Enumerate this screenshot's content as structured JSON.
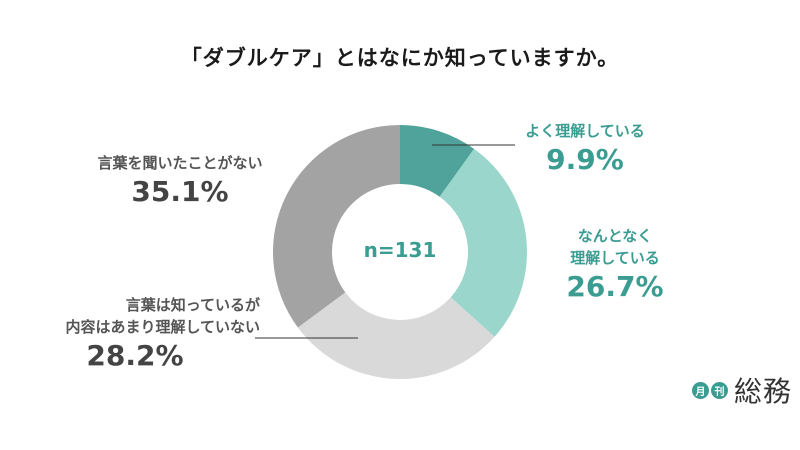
{
  "chart_data": {
    "type": "pie",
    "title": "「ダブルケア」とはなにか知っていますか。",
    "center_label": "n=131",
    "slices": [
      {
        "name_lines": [
          "よく理解している"
        ],
        "value": 9.9,
        "value_label": "9.9%",
        "color": "#4fa39a"
      },
      {
        "name_lines": [
          "なんとなく",
          "理解している"
        ],
        "value": 26.7,
        "value_label": "26.7%",
        "color": "#9ad6cb"
      },
      {
        "name_lines": [
          "言葉は知っているが",
          "内容はあまり理解していない"
        ],
        "value": 28.2,
        "value_label": "28.2%",
        "color": "#d9d9d9"
      },
      {
        "name_lines": [
          "言葉を聞いたことがない"
        ],
        "value": 35.1,
        "value_label": "35.1%",
        "color": "#a3a3a3"
      }
    ]
  },
  "logo": {
    "badge1": "月",
    "badge2": "刊",
    "word": "総務",
    "color": "#3b9c91"
  }
}
